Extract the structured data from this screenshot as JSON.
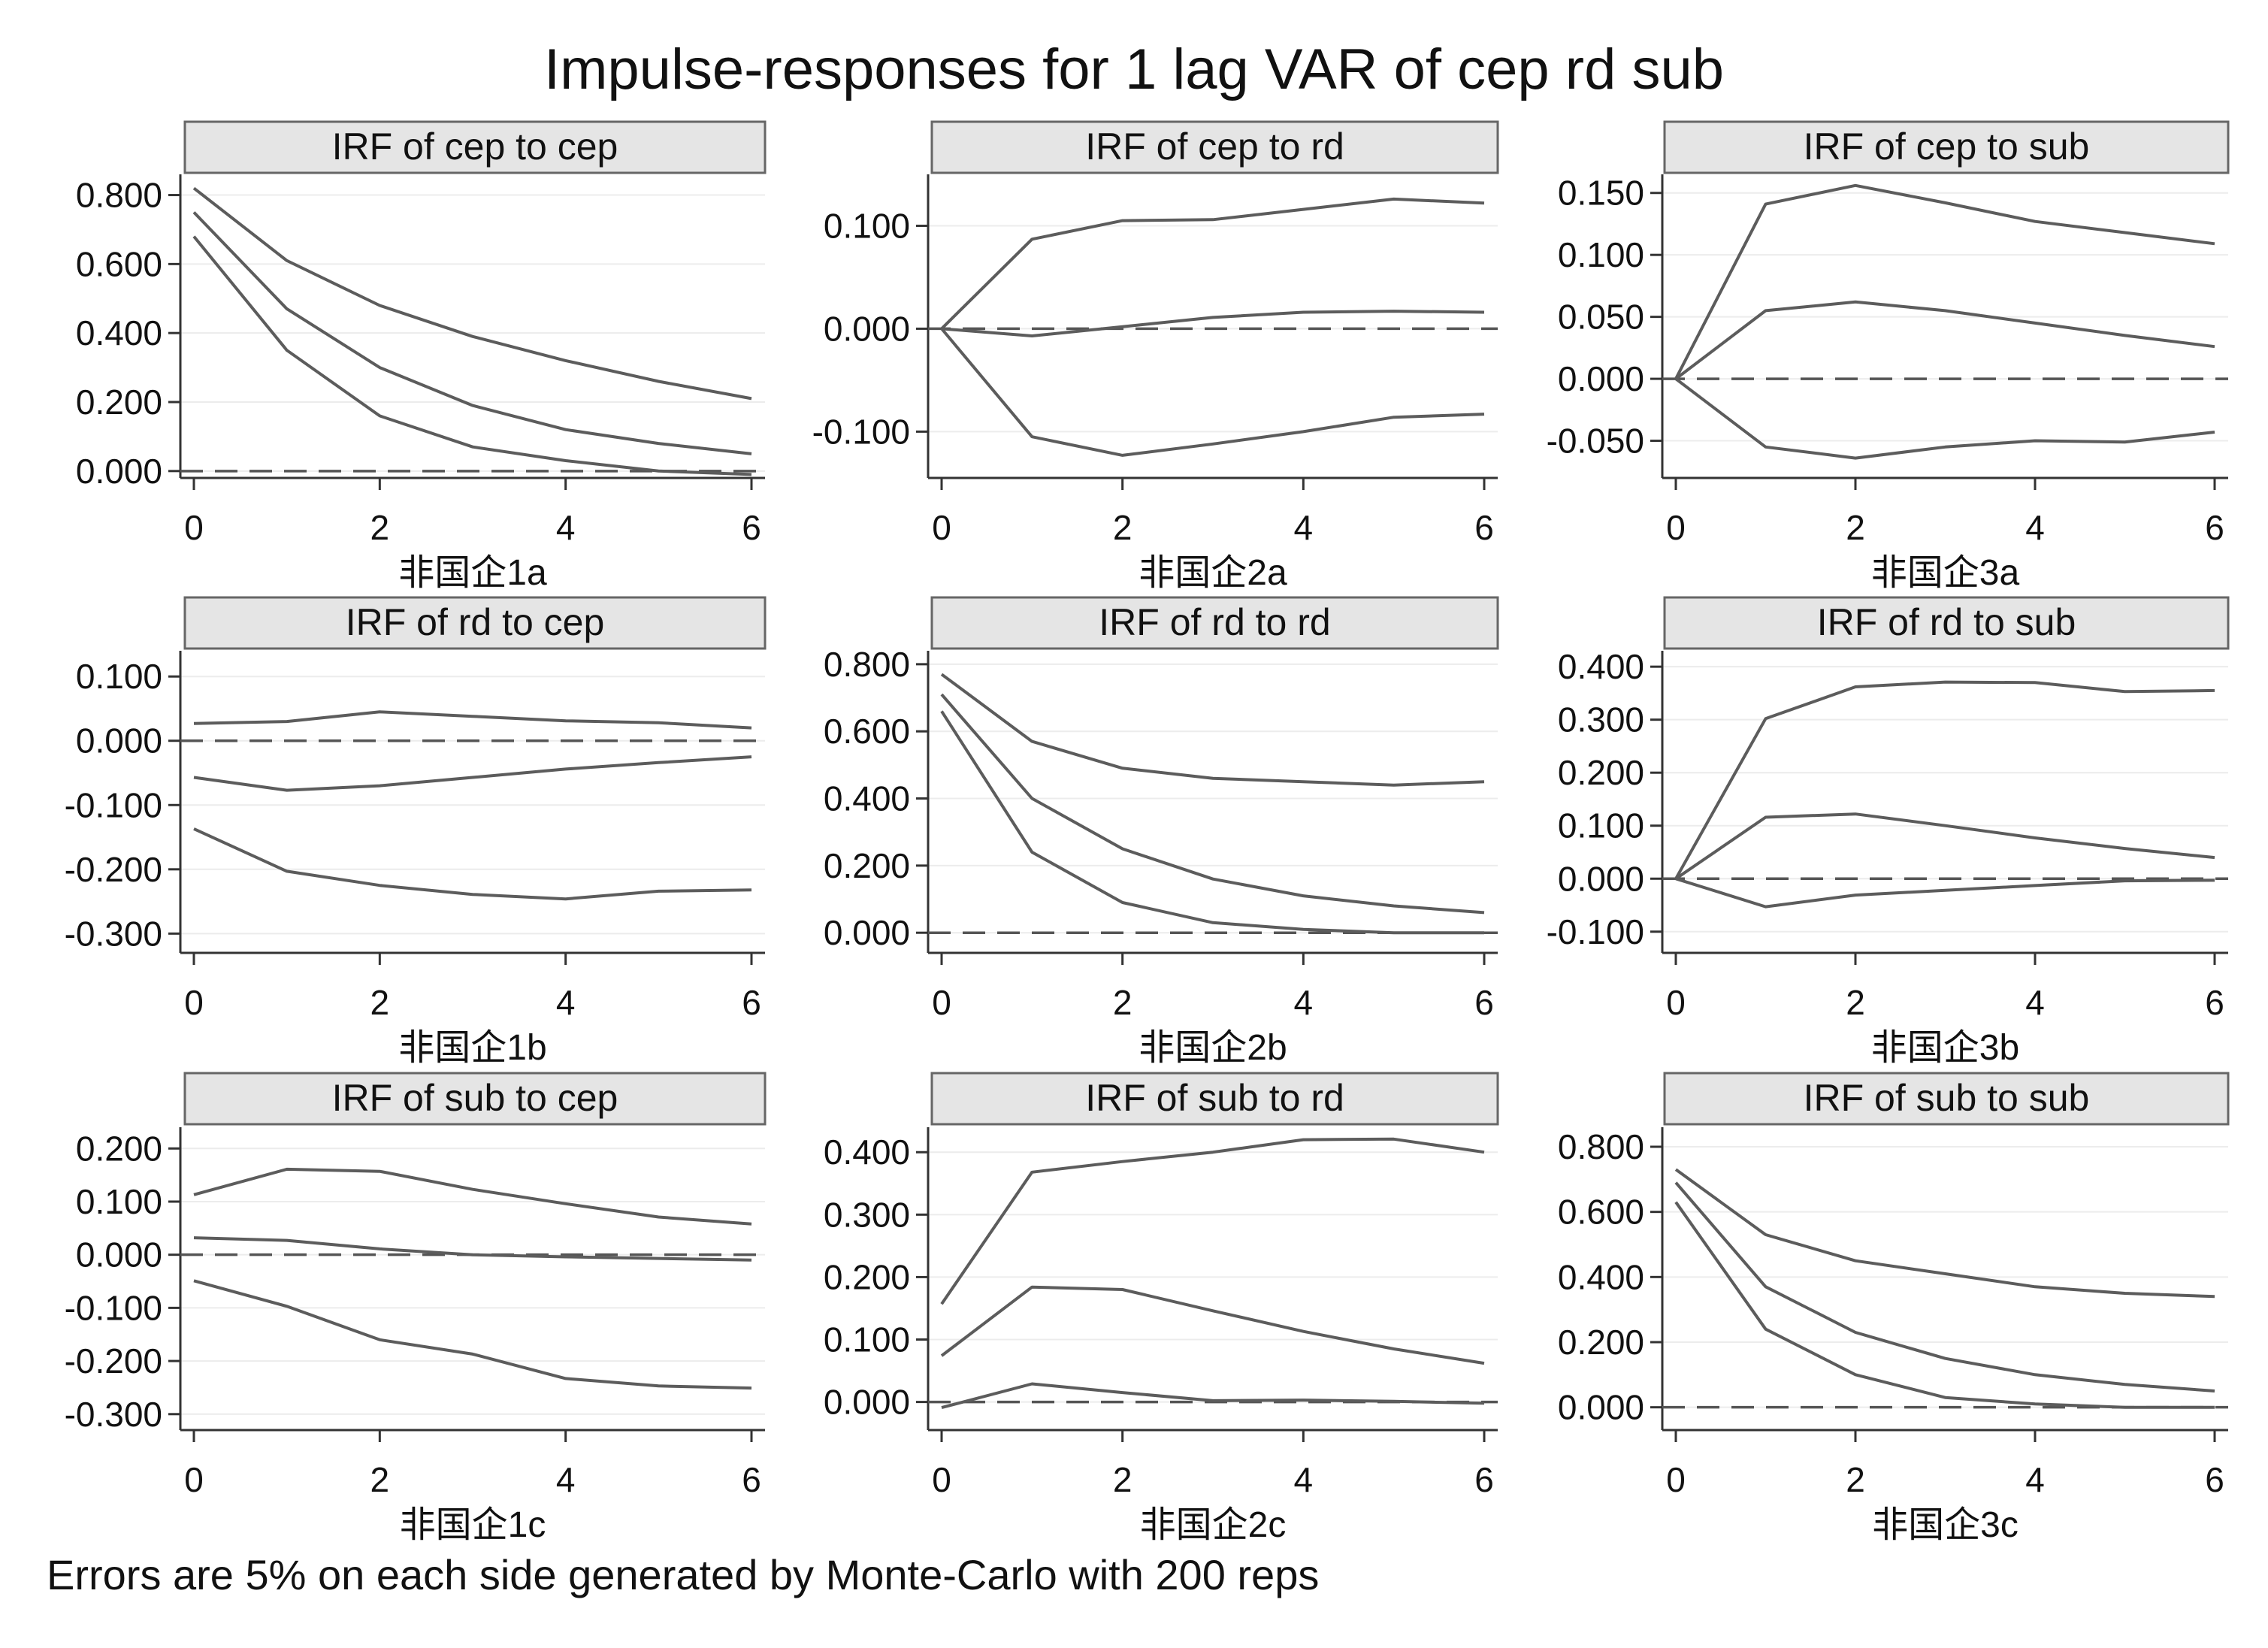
{
  "figure": {
    "title": "Impulse-responses for 1 lag VAR of cep rd sub",
    "note": "Errors are 5% on each side generated by Monte-Carlo with 200 reps"
  },
  "style": {
    "background": "#ffffff",
    "header_fill": "#e5e5e5",
    "header_stroke": "#666666",
    "line_color": "#5c5c5c",
    "zero_line_color": "#555555",
    "axis_color": "#333333",
    "text_color": "#111111"
  },
  "chart_data": [
    {
      "type": "line",
      "title": "IRF of cep to cep",
      "xlabel": "非国企1a",
      "ylabel": "",
      "x": [
        0,
        1,
        2,
        3,
        4,
        5,
        6
      ],
      "xticks": [
        "0",
        "2",
        "4",
        "6"
      ],
      "xlim": [
        0,
        6
      ],
      "ylim": [
        -0.02,
        0.86
      ],
      "yticks": [
        "0.800",
        "0.600",
        "0.400",
        "0.200",
        "0.000"
      ],
      "reference_line": 0,
      "grid": true,
      "series": [
        {
          "values": [
            0.82,
            0.61,
            0.48,
            0.39,
            0.32,
            0.26,
            0.21
          ]
        },
        {
          "values": [
            0.75,
            0.47,
            0.3,
            0.19,
            0.12,
            0.08,
            0.05
          ]
        },
        {
          "values": [
            0.68,
            0.35,
            0.16,
            0.07,
            0.03,
            0.0,
            -0.01
          ]
        }
      ]
    },
    {
      "type": "line",
      "title": "IRF of cep to rd",
      "xlabel": "非国企2a",
      "ylabel": "",
      "x": [
        0,
        1,
        2,
        3,
        4,
        5,
        6
      ],
      "xticks": [
        "0",
        "2",
        "4",
        "6"
      ],
      "xlim": [
        0,
        6
      ],
      "ylim": [
        -0.145,
        0.15
      ],
      "yticks": [
        "0.100",
        "0.000",
        "-0.100"
      ],
      "reference_line": 0,
      "grid": true,
      "series": [
        {
          "values": [
            0.0,
            0.087,
            0.105,
            0.106,
            0.116,
            0.126,
            0.122
          ]
        },
        {
          "values": [
            0.0,
            -0.007,
            0.002,
            0.011,
            0.016,
            0.017,
            0.016
          ]
        },
        {
          "values": [
            0.0,
            -0.105,
            -0.123,
            -0.112,
            -0.1,
            -0.086,
            -0.083
          ]
        }
      ]
    },
    {
      "type": "line",
      "title": "IRF of cep to sub",
      "xlabel": "非国企3a",
      "ylabel": "",
      "x": [
        0,
        1,
        2,
        3,
        4,
        5,
        6
      ],
      "xticks": [
        "0",
        "2",
        "4",
        "6"
      ],
      "xlim": [
        0,
        6
      ],
      "ylim": [
        -0.08,
        0.165
      ],
      "yticks": [
        "0.150",
        "0.100",
        "0.050",
        "0.000",
        "-0.050"
      ],
      "reference_line": 0,
      "grid": true,
      "series": [
        {
          "values": [
            0.0,
            0.141,
            0.156,
            0.142,
            0.127,
            0.118,
            0.109
          ]
        },
        {
          "values": [
            0.0,
            0.055,
            0.062,
            0.055,
            0.045,
            0.035,
            0.026
          ]
        },
        {
          "values": [
            0.0,
            -0.055,
            -0.064,
            -0.055,
            -0.05,
            -0.051,
            -0.043
          ]
        }
      ]
    },
    {
      "type": "line",
      "title": "IRF of rd to cep",
      "xlabel": "非国企1b",
      "ylabel": "",
      "x": [
        0,
        1,
        2,
        3,
        4,
        5,
        6
      ],
      "xticks": [
        "0",
        "2",
        "4",
        "6"
      ],
      "xlim": [
        0,
        6
      ],
      "ylim": [
        -0.33,
        0.14
      ],
      "yticks": [
        "0.100",
        "0.000",
        "-0.100",
        "-0.200",
        "-0.300"
      ],
      "reference_line": 0,
      "grid": true,
      "series": [
        {
          "values": [
            0.027,
            0.03,
            0.045,
            0.038,
            0.031,
            0.028,
            0.02
          ]
        },
        {
          "values": [
            -0.057,
            -0.077,
            -0.07,
            -0.057,
            -0.044,
            -0.034,
            -0.025
          ]
        },
        {
          "values": [
            -0.137,
            -0.203,
            -0.225,
            -0.239,
            -0.246,
            -0.234,
            -0.232
          ]
        }
      ]
    },
    {
      "type": "line",
      "title": "IRF of rd to rd",
      "xlabel": "非国企2b",
      "ylabel": "",
      "x": [
        0,
        1,
        2,
        3,
        4,
        5,
        6
      ],
      "xticks": [
        "0",
        "2",
        "4",
        "6"
      ],
      "xlim": [
        0,
        6
      ],
      "ylim": [
        -0.06,
        0.84
      ],
      "yticks": [
        "0.800",
        "0.600",
        "0.400",
        "0.200",
        "0.000"
      ],
      "reference_line": 0,
      "grid": true,
      "series": [
        {
          "values": [
            0.77,
            0.57,
            0.49,
            0.46,
            0.45,
            0.44,
            0.45
          ]
        },
        {
          "values": [
            0.71,
            0.4,
            0.25,
            0.16,
            0.11,
            0.08,
            0.06
          ]
        },
        {
          "values": [
            0.66,
            0.24,
            0.09,
            0.03,
            0.01,
            0.0,
            0.0
          ]
        }
      ]
    },
    {
      "type": "line",
      "title": "IRF of rd to sub",
      "xlabel": "非国企3b",
      "ylabel": "",
      "x": [
        0,
        1,
        2,
        3,
        4,
        5,
        6
      ],
      "xticks": [
        "0",
        "2",
        "4",
        "6"
      ],
      "xlim": [
        0,
        6
      ],
      "ylim": [
        -0.14,
        0.43
      ],
      "yticks": [
        "0.400",
        "0.300",
        "0.200",
        "0.100",
        "0.000",
        "-0.100"
      ],
      "reference_line": 0,
      "grid": true,
      "series": [
        {
          "values": [
            0.0,
            0.302,
            0.362,
            0.371,
            0.37,
            0.353,
            0.355
          ]
        },
        {
          "values": [
            0.0,
            0.116,
            0.122,
            0.1,
            0.077,
            0.057,
            0.04
          ]
        },
        {
          "values": [
            0.0,
            -0.053,
            -0.031,
            -0.022,
            -0.013,
            -0.004,
            -0.003
          ]
        }
      ]
    },
    {
      "type": "line",
      "title": "IRF of sub to cep",
      "xlabel": "非国企1c",
      "ylabel": "",
      "x": [
        0,
        1,
        2,
        3,
        4,
        5,
        6
      ],
      "xticks": [
        "0",
        "2",
        "4",
        "6"
      ],
      "xlim": [
        0,
        6
      ],
      "ylim": [
        -0.33,
        0.24
      ],
      "yticks": [
        "0.200",
        "0.100",
        "0.000",
        "-0.100",
        "-0.200",
        "-0.300"
      ],
      "reference_line": 0,
      "grid": true,
      "series": [
        {
          "values": [
            0.113,
            0.161,
            0.157,
            0.123,
            0.096,
            0.071,
            0.058
          ]
        },
        {
          "values": [
            0.032,
            0.027,
            0.011,
            0.0,
            -0.004,
            -0.007,
            -0.01
          ]
        },
        {
          "values": [
            -0.049,
            -0.097,
            -0.16,
            -0.187,
            -0.233,
            -0.247,
            -0.251
          ]
        }
      ]
    },
    {
      "type": "line",
      "title": "IRF of sub to rd",
      "xlabel": "非国企2c",
      "ylabel": "",
      "x": [
        0,
        1,
        2,
        3,
        4,
        5,
        6
      ],
      "xticks": [
        "0",
        "2",
        "4",
        "6"
      ],
      "xlim": [
        0,
        6
      ],
      "ylim": [
        -0.045,
        0.44
      ],
      "yticks": [
        "0.400",
        "0.300",
        "0.200",
        "0.100",
        "0.000"
      ],
      "reference_line": 0,
      "grid": true,
      "series": [
        {
          "values": [
            0.157,
            0.368,
            0.385,
            0.4,
            0.42,
            0.421,
            0.4
          ]
        },
        {
          "values": [
            0.074,
            0.184,
            0.18,
            0.146,
            0.113,
            0.085,
            0.062
          ]
        },
        {
          "values": [
            -0.009,
            0.029,
            0.015,
            0.002,
            0.003,
            0.001,
            -0.002
          ]
        }
      ]
    },
    {
      "type": "line",
      "title": "IRF of sub to sub",
      "xlabel": "非国企3c",
      "ylabel": "",
      "x": [
        0,
        1,
        2,
        3,
        4,
        5,
        6
      ],
      "xticks": [
        "0",
        "2",
        "4",
        "6"
      ],
      "xlim": [
        0,
        6
      ],
      "ylim": [
        -0.07,
        0.86
      ],
      "yticks": [
        "0.800",
        "0.600",
        "0.400",
        "0.200",
        "0.000"
      ],
      "reference_line": 0,
      "grid": true,
      "series": [
        {
          "values": [
            0.73,
            0.53,
            0.45,
            0.41,
            0.37,
            0.35,
            0.34
          ]
        },
        {
          "values": [
            0.69,
            0.37,
            0.23,
            0.15,
            0.1,
            0.07,
            0.05
          ]
        },
        {
          "values": [
            0.63,
            0.24,
            0.1,
            0.03,
            0.01,
            0.0,
            0.0
          ]
        }
      ]
    }
  ]
}
